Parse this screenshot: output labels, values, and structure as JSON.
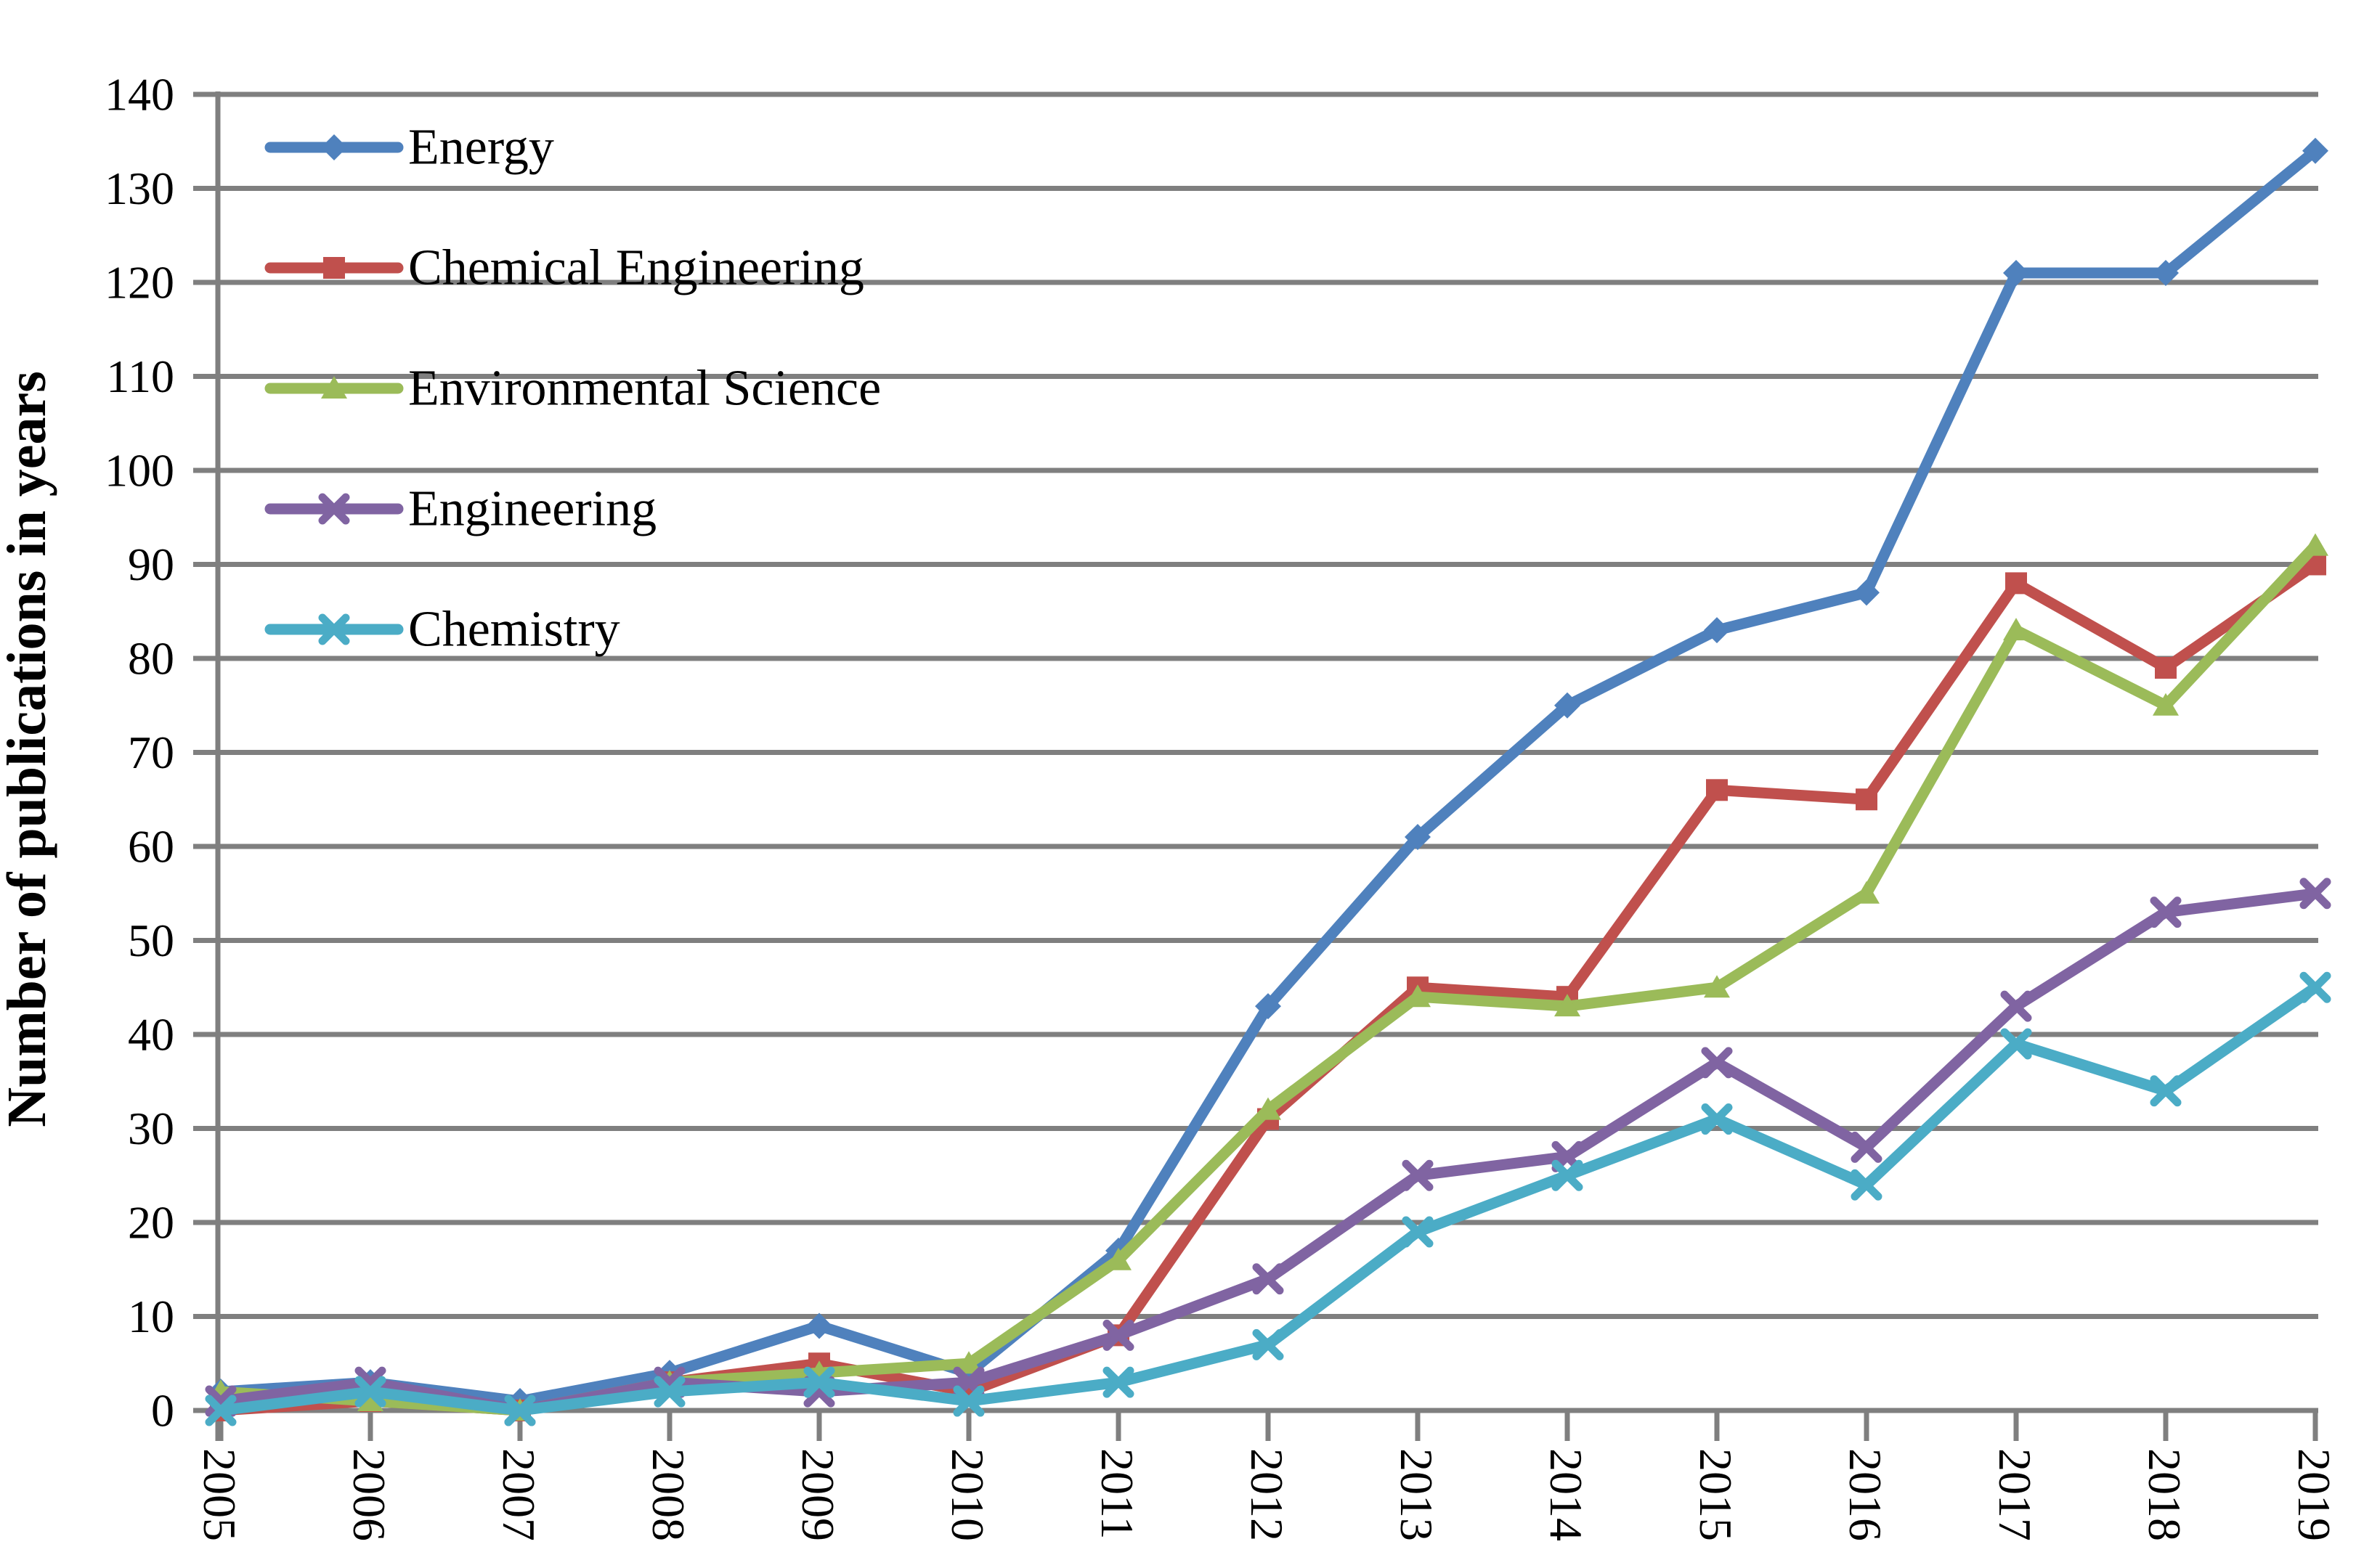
{
  "chart_data": {
    "type": "line",
    "title": "",
    "xlabel": "",
    "ylabel": "Number of publications in years",
    "categories": [
      "2005",
      "2006",
      "2007",
      "2008",
      "2009",
      "2010",
      "2011",
      "2012",
      "2013",
      "2014",
      "2015",
      "2016",
      "2017",
      "2018",
      "2019"
    ],
    "y_ticks": [
      0,
      10,
      20,
      30,
      40,
      50,
      60,
      70,
      80,
      90,
      100,
      110,
      120,
      130,
      140
    ],
    "ylim": [
      0,
      140
    ],
    "grid": "horizontal",
    "legend_position": "inside-top-left",
    "colors": {
      "background": "#FFFFFF",
      "grid": "#7F7F7F",
      "axis": "#7F7F7F",
      "text": "#000000"
    },
    "series": [
      {
        "name": "Energy",
        "color": "#4F81BD",
        "marker": "diamond",
        "values": [
          2,
          3,
          1,
          4,
          9,
          4,
          17,
          43,
          61,
          75,
          83,
          87,
          121,
          121,
          134
        ]
      },
      {
        "name": "Chemical Engineering",
        "color": "#C0504D",
        "marker": "square",
        "values": [
          0,
          1,
          0,
          3,
          5,
          2,
          8,
          31,
          45,
          44,
          66,
          65,
          88,
          79,
          90
        ]
      },
      {
        "name": "Environmental Science",
        "color": "#9BBB59",
        "marker": "triangle",
        "values": [
          2,
          1,
          0,
          3,
          4,
          5,
          16,
          32,
          44,
          43,
          45,
          55,
          83,
          75,
          92
        ]
      },
      {
        "name": "Engineering",
        "color": "#8064A2",
        "marker": "x",
        "values": [
          1,
          3,
          0,
          3,
          2,
          3,
          8,
          14,
          25,
          27,
          37,
          28,
          43,
          53,
          55
        ]
      },
      {
        "name": "Chemistry",
        "color": "#4BACC6",
        "marker": "x",
        "values": [
          0,
          2,
          0,
          2,
          3,
          1,
          3,
          7,
          19,
          25,
          31,
          24,
          39,
          34,
          45
        ]
      }
    ]
  }
}
